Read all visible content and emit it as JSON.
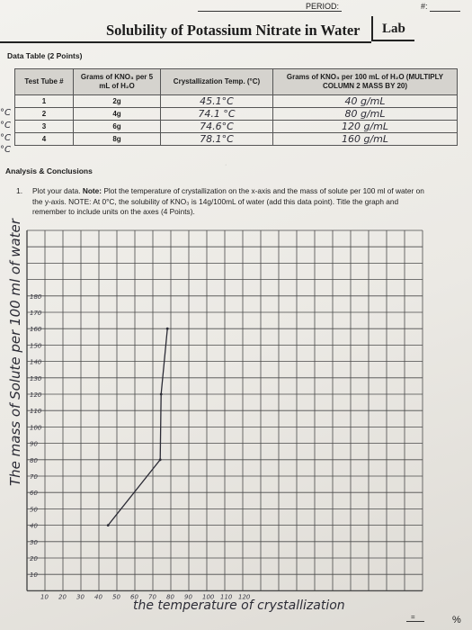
{
  "header": {
    "period_label": "PERIOD:",
    "number_label": "#:",
    "title": "Solubility of Potassium Nitrate in Water",
    "lab_label": "Lab"
  },
  "data_table": {
    "section_label": "Data Table (2 Points)",
    "headers": [
      "Test Tube #",
      "Grams of KNO₃ per 5 mL of H₂O",
      "Crystallization Temp. (°C)",
      "Grams of KNO₃ per 100 mL of H₂O (MULTIPLY COLUMN 2 MASS BY 20)"
    ],
    "rows": [
      {
        "tube": "1",
        "grams": "2g",
        "temp": "45.1°C",
        "per100": "40 g/mL"
      },
      {
        "tube": "2",
        "grams": "4g",
        "temp": "74.1 °C",
        "per100": "80 g/mL"
      },
      {
        "tube": "3",
        "grams": "6g",
        "temp": "74.6°C",
        "per100": "120 g/mL"
      },
      {
        "tube": "4",
        "grams": "8g",
        "temp": "78.1°C",
        "per100": "160 g/mL"
      }
    ],
    "margin_notes": [
      "°C",
      "°C",
      "°C",
      "°C"
    ]
  },
  "analysis": {
    "heading": "Analysis & Conclusions",
    "q_number": "1.",
    "q_intro": "Plot your data.",
    "q_note_label": "Note:",
    "q_body": " Plot the temperature of crystallization on the x-axis and the mass of solute per 100 ml of water on the y-axis. NOTE: At 0°C, the solubility of KNO₃ is 14g/100mL of water (add this data point). Title the graph and remember to include units on the axes (4 Points)."
  },
  "graph": {
    "y_axis_label": "The mass of Solute per 100 ml of water",
    "x_axis_label": "the temperature of crystallization",
    "y_ticks": [
      "10",
      "20",
      "30",
      "40",
      "50",
      "60",
      "70",
      "80",
      "90",
      "100",
      "110",
      "120",
      "130",
      "140",
      "150",
      "160",
      "170",
      "180"
    ],
    "x_ticks": [
      "10",
      "20",
      "30",
      "40",
      "50",
      "60",
      "70",
      "80",
      "90",
      "100",
      "110",
      "120"
    ],
    "plotted_points": [
      {
        "temp_c": 45.1,
        "grams": 40
      },
      {
        "temp_c": 74.1,
        "grams": 80
      },
      {
        "temp_c": 74.6,
        "grams": 120
      },
      {
        "temp_c": 78.1,
        "grams": 160
      }
    ],
    "line_color": "#2b2b35"
  },
  "footer": {
    "score_eq": "=",
    "score_pct": "%"
  }
}
